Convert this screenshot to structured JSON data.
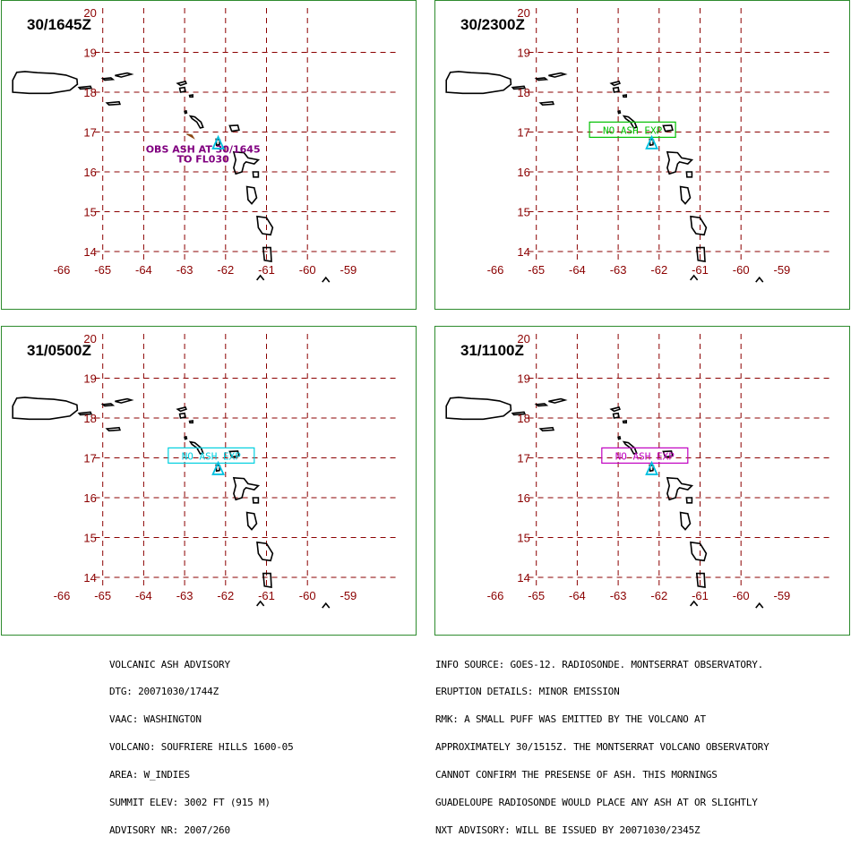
{
  "panels": [
    {
      "title": "30/1645Z",
      "label": {
        "lines": [
          "OBS ASH AT 30/1645",
          "TO FL030"
        ],
        "color": "#800080",
        "boxed": false
      }
    },
    {
      "title": "30/2300Z",
      "label": {
        "lines": [
          "NO ASH EXP"
        ],
        "color": "#00c000",
        "boxed": true
      }
    },
    {
      "title": "31/0500Z",
      "label": {
        "lines": [
          "NO ASH EXP"
        ],
        "color": "#00d0e0",
        "boxed": true
      }
    },
    {
      "title": "31/1100Z",
      "label": {
        "lines": [
          "NO ASH EXP"
        ],
        "color": "#c000c0",
        "boxed": true
      }
    }
  ],
  "axes": {
    "lon_labels": [
      "-66",
      "-65",
      "-64",
      "-63",
      "-62",
      "-61",
      "-60",
      "-59"
    ],
    "lat_labels": [
      "20",
      "19",
      "18",
      "17",
      "16",
      "15",
      "14"
    ],
    "grid_color": "#8b0000",
    "label_color": "#8b0000"
  },
  "volcano": {
    "lon": -62.18,
    "lat": 16.72,
    "color": "#00c0e0"
  },
  "advisory_left": [
    "VOLCANIC ASH ADVISORY",
    "DTG: 20071030/1744Z",
    "VAAC: WASHINGTON",
    "VOLCANO: SOUFRIERE HILLS 1600-05",
    "AREA: W_INDIES",
    "SUMMIT ELEV: 3002 FT (915 M)",
    "ADVISORY NR: 2007/260"
  ],
  "advisory_right": [
    "INFO SOURCE: GOES-12. RADIOSONDE. MONTSERRAT OBSERVATORY.",
    "ERUPTION DETAILS: MINOR EMISSION",
    "RMK: A SMALL PUFF WAS EMITTED BY THE VOLCANO AT",
    "APPROXIMATELY 30/1515Z. THE MONTSERRAT VOLCANO OBSERVATORY",
    "CANNOT CONFIRM THE PRESENSE OF ASH. THIS MORNINGS",
    "GUADELOUPE RADIOSONDE WOULD PLACE ANY ASH AT OR SLIGHTLY",
    "NXT ADVISORY: WILL BE ISSUED BY 20071030/2345Z"
  ]
}
